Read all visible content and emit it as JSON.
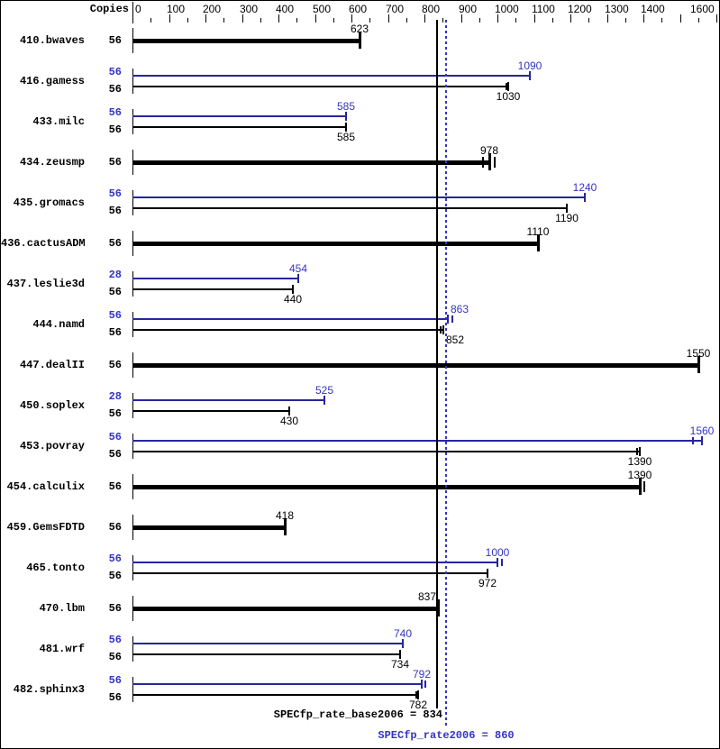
{
  "header": {
    "copies_label": "Copies"
  },
  "colors": {
    "base_bar": "#000000",
    "base_text": "#000000",
    "peak_bar": "#26269c",
    "peak_text": "#3434c4",
    "ref_base_line": "#000000",
    "ref_peak_line": "#3434c4"
  },
  "summary": {
    "base_value": 834,
    "peak_value": 860,
    "base_text": "SPECfp_rate_base2006 = 834",
    "peak_text": "SPECfp_rate2006 = 860"
  },
  "chart_data": {
    "type": "bar",
    "orientation": "horizontal",
    "title": "",
    "xlabel": "",
    "ylabel": "Copies",
    "xlim": [
      0,
      1600
    ],
    "x_major_step": 100,
    "x_minor_step": 50,
    "x_tick_labels": [
      0,
      100,
      200,
      300,
      400,
      500,
      600,
      700,
      800,
      900,
      1000,
      1100,
      1200,
      1300,
      1400,
      1600
    ],
    "grid": false,
    "legend_position": "none",
    "reference_lines": [
      {
        "id": "base",
        "value": 834,
        "style": "solid",
        "label": "SPECfp_rate_base2006 = 834"
      },
      {
        "id": "peak",
        "value": 860,
        "style": "dotted",
        "label": "SPECfp_rate2006 = 860"
      }
    ],
    "benchmarks": [
      {
        "name": "410.bwaves",
        "bars": [
          {
            "series": "base",
            "copies": 56,
            "value": 623,
            "thick": true
          }
        ]
      },
      {
        "name": "416.gamess",
        "bars": [
          {
            "series": "peak",
            "copies": 56,
            "value": 1090
          },
          {
            "series": "base",
            "copies": 56,
            "value": 1030,
            "run_marks": [
              1022
            ]
          }
        ]
      },
      {
        "name": "433.milc",
        "bars": [
          {
            "series": "peak",
            "copies": 56,
            "value": 585
          },
          {
            "series": "base",
            "copies": 56,
            "value": 585
          }
        ]
      },
      {
        "name": "434.zeusmp",
        "bars": [
          {
            "series": "base",
            "copies": 56,
            "value": 978,
            "thick": true,
            "run_marks": [
              958,
              990
            ]
          }
        ]
      },
      {
        "name": "435.gromacs",
        "bars": [
          {
            "series": "peak",
            "copies": 56,
            "value": 1240
          },
          {
            "series": "base",
            "copies": 56,
            "value": 1190
          }
        ]
      },
      {
        "name": "436.cactusADM",
        "bars": [
          {
            "series": "base",
            "copies": 56,
            "value": 1110,
            "thick": true
          }
        ]
      },
      {
        "name": "437.leslie3d",
        "bars": [
          {
            "series": "peak",
            "copies": 28,
            "value": 454
          },
          {
            "series": "base",
            "copies": 56,
            "value": 440
          }
        ]
      },
      {
        "name": "444.namd",
        "bars": [
          {
            "series": "peak",
            "copies": 56,
            "value": 863,
            "label_dx": 13,
            "run_marks": [
              873
            ]
          },
          {
            "series": "base",
            "copies": 56,
            "value": 852,
            "label_dx": 13,
            "run_marks": [
              842
            ]
          }
        ]
      },
      {
        "name": "447.dealII",
        "bars": [
          {
            "series": "base",
            "copies": 56,
            "value": 1550,
            "thick": true
          }
        ]
      },
      {
        "name": "450.soplex",
        "bars": [
          {
            "series": "peak",
            "copies": 28,
            "value": 525
          },
          {
            "series": "base",
            "copies": 56,
            "value": 430
          }
        ]
      },
      {
        "name": "453.povray",
        "bars": [
          {
            "series": "peak",
            "copies": 56,
            "value": 1560,
            "run_marks": [
              1534
            ]
          },
          {
            "series": "base",
            "copies": 56,
            "value": 1390,
            "run_marks": [
              1380
            ]
          }
        ]
      },
      {
        "name": "454.calculix",
        "bars": [
          {
            "series": "base",
            "copies": 56,
            "value": 1390,
            "thick": true,
            "run_marks": [
              1400
            ]
          }
        ]
      },
      {
        "name": "459.GemsFDTD",
        "bars": [
          {
            "series": "base",
            "copies": 56,
            "value": 418,
            "thick": true
          }
        ]
      },
      {
        "name": "465.tonto",
        "bars": [
          {
            "series": "peak",
            "copies": 56,
            "value": 1000,
            "run_marks": [
              1009
            ]
          },
          {
            "series": "base",
            "copies": 56,
            "value": 972
          }
        ]
      },
      {
        "name": "470.lbm",
        "bars": [
          {
            "series": "base",
            "copies": 56,
            "value": 837,
            "thick": true,
            "label_dx": -12
          }
        ]
      },
      {
        "name": "481.wrf",
        "bars": [
          {
            "series": "peak",
            "copies": 56,
            "value": 740
          },
          {
            "series": "base",
            "copies": 56,
            "value": 734
          }
        ]
      },
      {
        "name": "482.sphinx3",
        "bars": [
          {
            "series": "peak",
            "copies": 56,
            "value": 792,
            "run_marks": [
              799
            ]
          },
          {
            "series": "base",
            "copies": 56,
            "value": 782,
            "run_marks": [
              775
            ]
          }
        ]
      }
    ]
  }
}
